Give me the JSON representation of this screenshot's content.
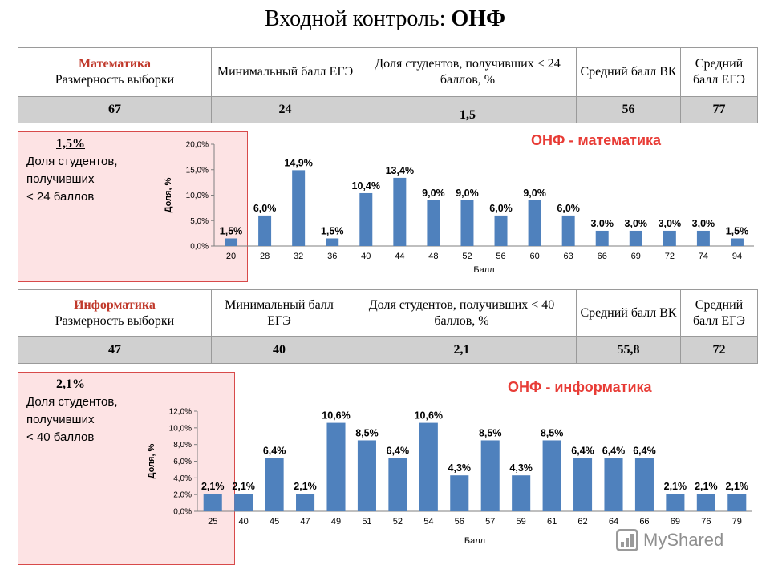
{
  "title": {
    "normal": "Входной контроль: ",
    "bold": "ОНФ"
  },
  "math": {
    "table": {
      "subject": "Математика",
      "col1": "Размерность выборки",
      "col2": "Минимальный балл ЕГЭ",
      "col3": "Доля студентов, получивших < 24 баллов, %",
      "col4": "Средний балл ВК",
      "col5": "Средний балл ЕГЭ",
      "values": [
        "67",
        "24",
        "1,5",
        "56",
        "77"
      ]
    },
    "box": {
      "pct": "1,5%",
      "text": [
        "Доля студентов,",
        "получивших",
        "< 24 баллов"
      ]
    },
    "chart_title": "ОНФ - математика"
  },
  "info": {
    "table": {
      "subject": "Информатика",
      "col1": "Размерность выборки",
      "col2": "Минимальный балл ЕГЭ",
      "col3": "Доля студентов, получивших < 40 баллов, %",
      "col4": "Средний балл ВК",
      "col5": "Средний балл ЕГЭ",
      "values": [
        "47",
        "40",
        "2,1",
        "55,8",
        "72"
      ]
    },
    "box": {
      "pct": "2,1%",
      "text": [
        "Доля студентов,",
        "получивших",
        "< 40 баллов"
      ]
    },
    "chart_title": "ОНФ - информатика"
  },
  "watermark": "MyShared",
  "colors": {
    "bar": "#4f81bd",
    "accent": "#e83c36",
    "box_bg": "#fde3e4"
  },
  "chart_data": [
    {
      "type": "bar",
      "title": "ОНФ - математика",
      "xlabel": "Балл",
      "ylabel": "Доля, %",
      "ylim": [
        0,
        20
      ],
      "yticks": [
        "0,0%",
        "5,0%",
        "10,0%",
        "15,0%",
        "20,0%"
      ],
      "categories": [
        "20",
        "28",
        "32",
        "36",
        "40",
        "44",
        "48",
        "52",
        "56",
        "60",
        "63",
        "66",
        "69",
        "72",
        "74",
        "94"
      ],
      "values": [
        1.5,
        6.0,
        14.9,
        1.5,
        10.4,
        13.4,
        9.0,
        9.0,
        6.0,
        9.0,
        6.0,
        3.0,
        3.0,
        3.0,
        3.0,
        1.5
      ],
      "labels": [
        "1,5%",
        "6,0%",
        "14,9%",
        "1,5%",
        "10,4%",
        "13,4%",
        "9,0%",
        "9,0%",
        "6,0%",
        "9,0%",
        "6,0%",
        "3,0%",
        "3,0%",
        "3,0%",
        "3,0%",
        "1,5%"
      ]
    },
    {
      "type": "bar",
      "title": "ОНФ - информатика",
      "xlabel": "Балл",
      "ylabel": "Доля, %",
      "ylim": [
        0,
        12
      ],
      "yticks": [
        "0,0%",
        "2,0%",
        "4,0%",
        "6,0%",
        "8,0%",
        "10,0%",
        "12,0%"
      ],
      "categories": [
        "25",
        "40",
        "45",
        "47",
        "49",
        "51",
        "52",
        "54",
        "56",
        "57",
        "59",
        "61",
        "62",
        "64",
        "66",
        "69",
        "76",
        "79"
      ],
      "values": [
        2.1,
        2.1,
        6.4,
        2.1,
        10.6,
        8.5,
        6.4,
        10.6,
        4.3,
        8.5,
        4.3,
        8.5,
        6.4,
        6.4,
        6.4,
        2.1,
        2.1,
        2.1
      ],
      "labels": [
        "2,1%",
        "2,1%",
        "6,4%",
        "2,1%",
        "10,6%",
        "8,5%",
        "6,4%",
        "10,6%",
        "4,3%",
        "8,5%",
        "4,3%",
        "8,5%",
        "6,4%",
        "6,4%",
        "6,4%",
        "2,1%",
        "2,1%",
        "2,1%"
      ]
    }
  ]
}
